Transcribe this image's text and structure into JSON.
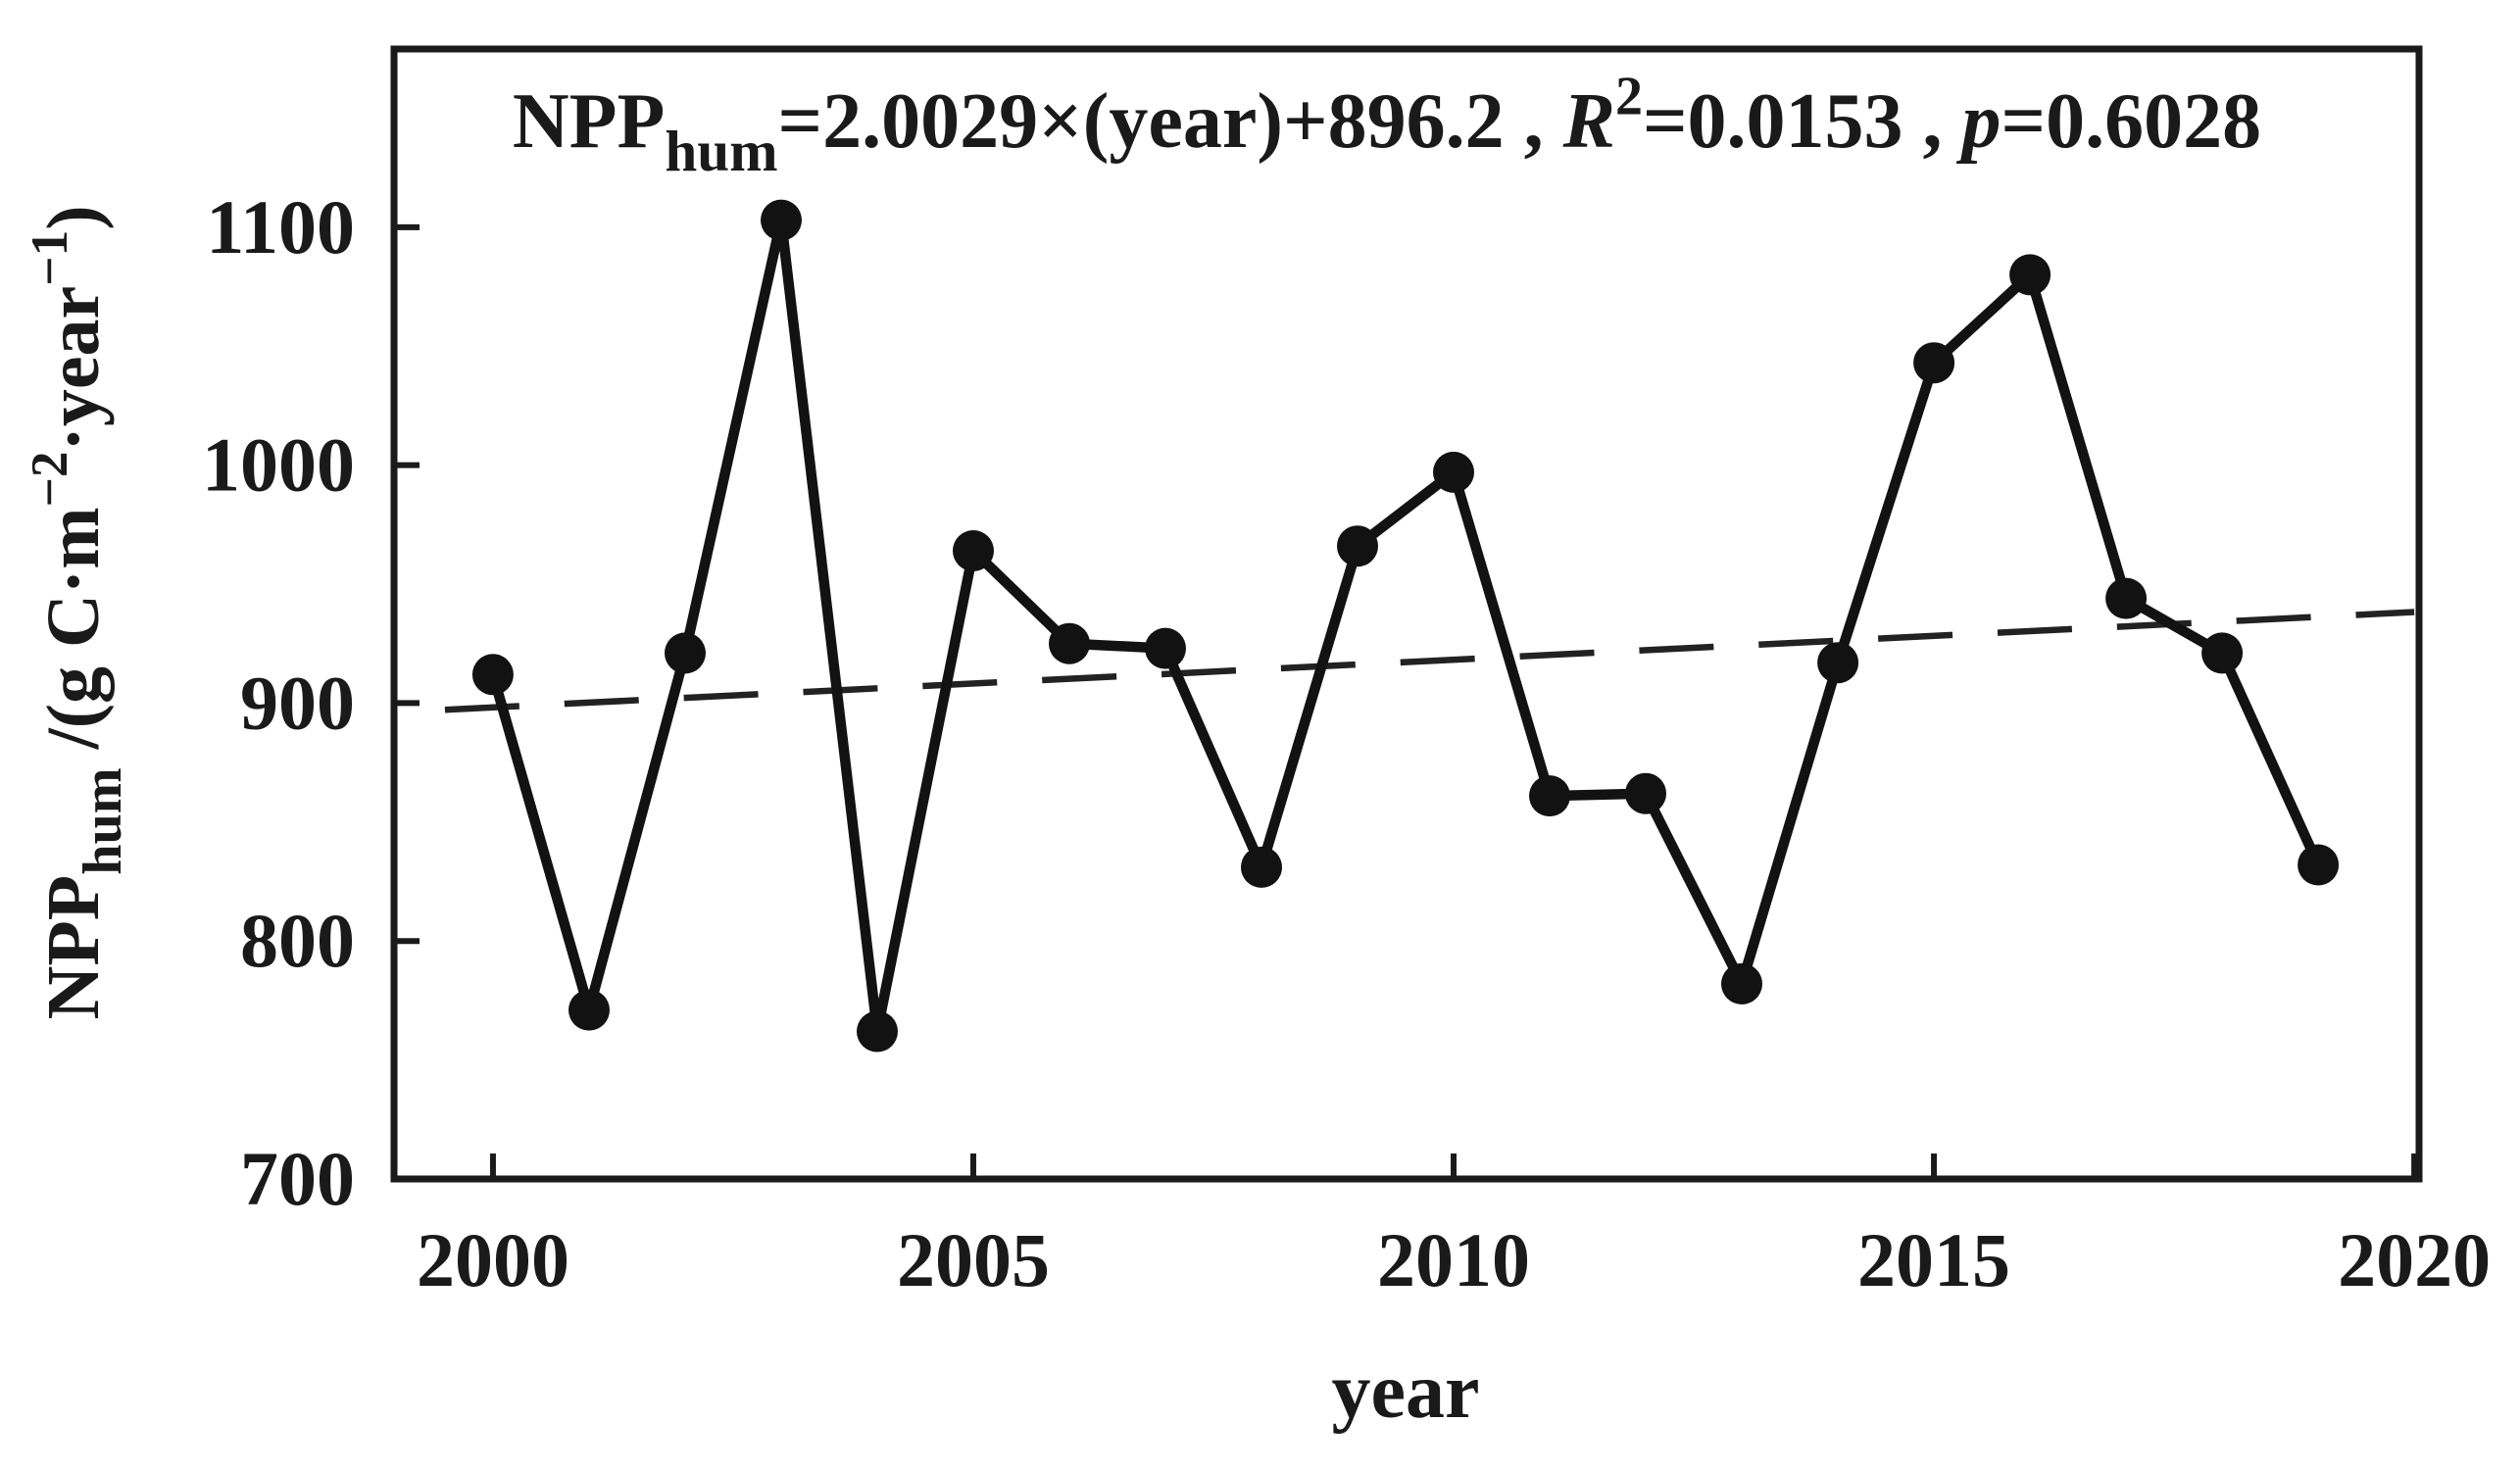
{
  "chart_data": {
    "type": "line",
    "title": {
      "text": "NPP_hum=2.0029×(year)+896.2 , R^2=0.0153 , p=0.6028",
      "parts": [
        {
          "t": "NPP"
        },
        {
          "t": "hum",
          "style": "sub"
        },
        {
          "t": "=2.0029×(year)+896.2 , "
        },
        {
          "t": "R",
          "style": "italic"
        },
        {
          "t": "2",
          "style": "sup"
        },
        {
          "t": "=0.0153 , "
        },
        {
          "t": "p",
          "style": "italic"
        },
        {
          "t": "=0.6028"
        }
      ]
    },
    "xlabel": "year",
    "ylabel": {
      "text": "NPP_hum /(g C·m^−2·year^−1)",
      "parts": [
        {
          "t": "NPP"
        },
        {
          "t": "hum",
          "style": "sub"
        },
        {
          "t": " /(g C·m"
        },
        {
          "t": "−2",
          "style": "sup"
        },
        {
          "t": "·year"
        },
        {
          "t": "−1",
          "style": "sup"
        },
        {
          "t": ")"
        }
      ]
    },
    "series_name": "NPP_hum",
    "x": [
      2000,
      2001,
      2002,
      2003,
      2004,
      2005,
      2006,
      2007,
      2008,
      2009,
      2010,
      2011,
      2012,
      2013,
      2014,
      2015,
      2016,
      2017,
      2018,
      2019
    ],
    "values": [
      912,
      771,
      921,
      1103,
      762,
      964,
      925,
      923,
      831,
      966,
      997,
      861,
      862,
      782,
      917,
      1043,
      1080,
      944,
      921,
      832
    ],
    "xticks": [
      2000,
      2005,
      2010,
      2015,
      2020
    ],
    "yticks": [
      700,
      800,
      900,
      1000,
      1100
    ],
    "xlim": [
      1998.97,
      2020.05
    ],
    "ylim": [
      700,
      1174.9
    ],
    "grid": false,
    "legend": "none",
    "trend": {
      "kind": "linear-regression-dashed",
      "slope_per_year": 2.0029,
      "intercept_at_1999": 896.2,
      "r_squared": 0.0153,
      "p_value": 0.6028,
      "x_start": 1999.5,
      "x_end": 2020.0
    },
    "colors": {
      "line": "#121212",
      "marker": "#121212",
      "trend": "#222222",
      "axis": "#1a1a1a",
      "text": "#1a1a1a",
      "background": "#ffffff"
    }
  }
}
